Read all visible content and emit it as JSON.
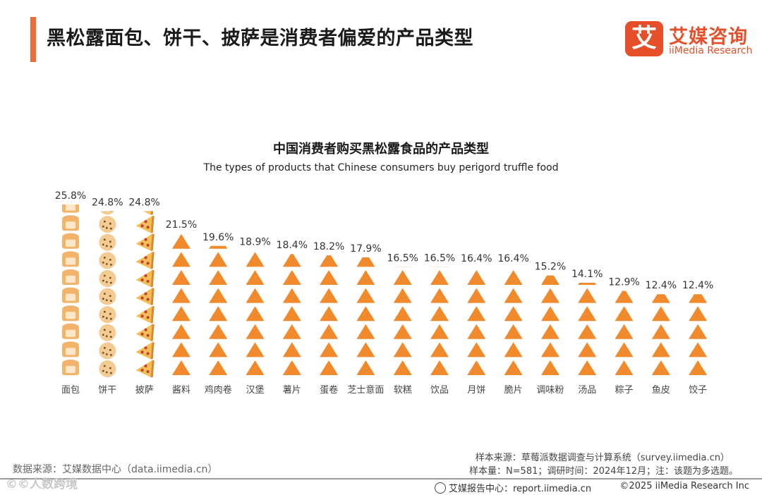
{
  "header": {
    "title": "黑松露面包、饼干、披萨是消费者偏爱的产品类型",
    "logo_mark": "艾",
    "logo_cn": "艾媒咨询",
    "logo_en": "iiMedia Research"
  },
  "chart_data": {
    "type": "bar",
    "title": "中国消费者购买黑松露食品的产品类型",
    "subtitle": "The types of products that Chinese consumers buy perigord truffle food",
    "categories": [
      "面包",
      "饼干",
      "披萨",
      "酱料",
      "鸡肉卷",
      "汉堡",
      "薯片",
      "蛋卷",
      "芝士意面",
      "软糕",
      "饮品",
      "月饼",
      "脆片",
      "调味粉",
      "汤品",
      "粽子",
      "鱼皮",
      "饺子"
    ],
    "values": [
      25.8,
      24.8,
      24.8,
      21.5,
      19.6,
      18.9,
      18.4,
      18.2,
      17.9,
      16.5,
      16.5,
      16.4,
      16.4,
      15.2,
      14.1,
      12.9,
      12.4,
      12.4
    ],
    "value_labels": [
      "25.8%",
      "24.8%",
      "24.8%",
      "21.5%",
      "19.6%",
      "18.9%",
      "18.4%",
      "18.2%",
      "17.9%",
      "16.5%",
      "16.5%",
      "16.4%",
      "16.4%",
      "15.2%",
      "14.1%",
      "12.9%",
      "12.4%",
      "12.4%"
    ],
    "unit": "%",
    "xlabel": "",
    "ylabel": "",
    "ylim": [
      0,
      26
    ]
  },
  "colors": {
    "accent": "#f06a3a",
    "icon": "#f08a2c",
    "bread": "#f1b46a",
    "cookie": "#f3cc93",
    "pizza": "#f2be55"
  },
  "source": {
    "left": "数据来源：艾媒数据中心（data.iimedia.cn）",
    "sample_source": "样本来源：草莓派数据调查与计算系统（survey.iimedia.cn）",
    "sample_size": "样本量：N=581；调研时间：2024年12月；注：该题为多选题。"
  },
  "footer": {
    "report": "艾媒报告中心：report.iimedia.cn",
    "copyright": "©2025  iiMedia Research  Inc",
    "watermark": "©©人数跨境"
  }
}
